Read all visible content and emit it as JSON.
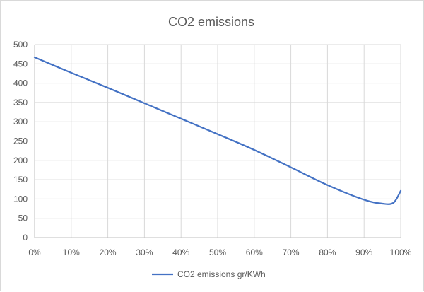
{
  "chart_data": {
    "type": "line",
    "title": "CO2 emissions",
    "xlabel": "",
    "ylabel": "",
    "x": [
      0,
      10,
      20,
      30,
      40,
      50,
      60,
      70,
      80,
      90,
      95,
      98,
      100
    ],
    "x_tick_labels": [
      "0%",
      "10%",
      "20%",
      "30%",
      "40%",
      "50%",
      "60%",
      "70%",
      "80%",
      "90%",
      "100%"
    ],
    "x_ticks": [
      0,
      10,
      20,
      30,
      40,
      50,
      60,
      70,
      80,
      90,
      100
    ],
    "xlim": [
      0,
      100
    ],
    "ylim": [
      0,
      500
    ],
    "y_ticks": [
      0,
      50,
      100,
      150,
      200,
      250,
      300,
      350,
      400,
      450,
      500
    ],
    "grid": true,
    "legend_position": "bottom",
    "series": [
      {
        "name": "CO2 emissions gr/KWh",
        "color": "#4472c4",
        "values": [
          467,
          427,
          388,
          348,
          308,
          268,
          227,
          182,
          136,
          98,
          88,
          90,
          121
        ]
      }
    ]
  }
}
